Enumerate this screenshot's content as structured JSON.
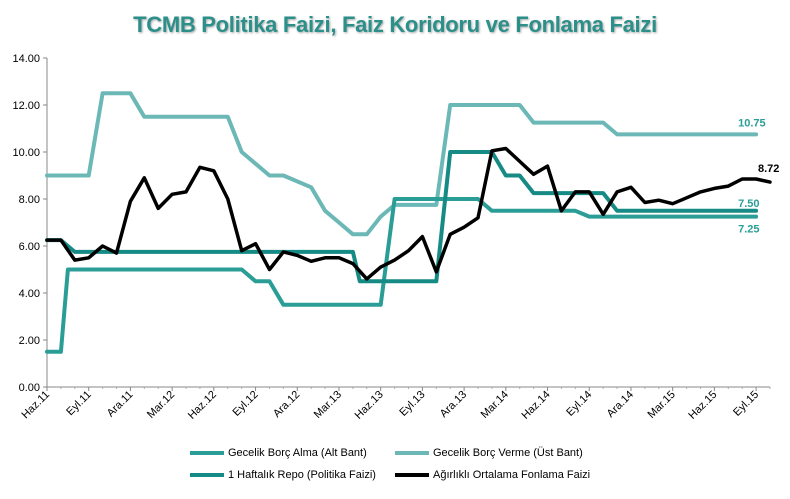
{
  "chart_data": {
    "type": "line",
    "title": "TCMB Politika Faizi, Faiz Koridoru ve Fonlama Faizi",
    "xlabel": "",
    "ylabel": "",
    "ylim": [
      0,
      14
    ],
    "yticks": [
      "0.00",
      "2.00",
      "4.00",
      "6.00",
      "8.00",
      "10.00",
      "12.00",
      "14.00"
    ],
    "xticks": [
      "Haz.11",
      "Eyl.11",
      "Ara.11",
      "Mar.12",
      "Haz.12",
      "Eyl.12",
      "Ara.12",
      "Mar.13",
      "Haz.13",
      "Eyl.13",
      "Ara.13",
      "Mar.14",
      "Haz.14",
      "Eyl.14",
      "Ara.14",
      "Mar.15",
      "Haz.15",
      "Eyl.15"
    ],
    "grid": false,
    "legend": "bottom",
    "series": [
      {
        "name": "Gecelik Borç Alma (Alt Bant)",
        "color": "#2b9d97",
        "values": [
          [
            0,
            1.5
          ],
          [
            1,
            1.5
          ],
          [
            1.5,
            5.0
          ],
          [
            14,
            5.0
          ],
          [
            15,
            4.5
          ],
          [
            16,
            4.5
          ],
          [
            17,
            3.5
          ],
          [
            24,
            3.5
          ],
          [
            25,
            8.0
          ],
          [
            31,
            8.0
          ],
          [
            32,
            7.5
          ],
          [
            38,
            7.5
          ],
          [
            39,
            7.25
          ],
          [
            51,
            7.25
          ]
        ],
        "end_label": "7.25"
      },
      {
        "name": "Gecelik Borç Verme (Üst Bant)",
        "color": "#6cb8b6",
        "values": [
          [
            0,
            9.0
          ],
          [
            3,
            9.0
          ],
          [
            4,
            12.5
          ],
          [
            6,
            12.5
          ],
          [
            7,
            11.5
          ],
          [
            13,
            11.5
          ],
          [
            14,
            10.0
          ],
          [
            16,
            9.0
          ],
          [
            17,
            9.0
          ],
          [
            19,
            8.5
          ],
          [
            20,
            7.5
          ],
          [
            21,
            7.0
          ],
          [
            22,
            6.5
          ],
          [
            23,
            6.5
          ],
          [
            24,
            7.25
          ],
          [
            25,
            7.75
          ],
          [
            28,
            7.75
          ],
          [
            29,
            12.0
          ],
          [
            34,
            12.0
          ],
          [
            35,
            11.25
          ],
          [
            40,
            11.25
          ],
          [
            41,
            10.75
          ],
          [
            51,
            10.75
          ]
        ],
        "end_label": "10.75"
      },
      {
        "name": "1 Haftalık Repo (Politika Faizi)",
        "color": "#168a84",
        "values": [
          [
            0,
            6.25
          ],
          [
            1,
            6.25
          ],
          [
            2,
            5.75
          ],
          [
            22,
            5.75
          ],
          [
            22.5,
            4.5
          ],
          [
            28,
            4.5
          ],
          [
            29,
            10.0
          ],
          [
            32,
            10.0
          ],
          [
            33,
            9.0
          ],
          [
            34,
            9.0
          ],
          [
            35,
            8.25
          ],
          [
            40,
            8.25
          ],
          [
            41,
            7.5
          ],
          [
            51,
            7.5
          ]
        ],
        "end_label": "7.50"
      },
      {
        "name": "Ağırlıklı Ortalama Fonlama Faizi",
        "color": "#000000",
        "values": [
          [
            0,
            6.25
          ],
          [
            1,
            6.25
          ],
          [
            2,
            5.4
          ],
          [
            3,
            5.5
          ],
          [
            4,
            6.0
          ],
          [
            5,
            5.7
          ],
          [
            6,
            7.9
          ],
          [
            7,
            8.9
          ],
          [
            8,
            7.6
          ],
          [
            9,
            8.2
          ],
          [
            10,
            8.3
          ],
          [
            11,
            9.35
          ],
          [
            12,
            9.2
          ],
          [
            13,
            8.0
          ],
          [
            14,
            5.8
          ],
          [
            15,
            6.1
          ],
          [
            16,
            5.0
          ],
          [
            17,
            5.75
          ],
          [
            18,
            5.6
          ],
          [
            19,
            5.35
          ],
          [
            20,
            5.5
          ],
          [
            21,
            5.5
          ],
          [
            22,
            5.25
          ],
          [
            23,
            4.6
          ],
          [
            24,
            5.1
          ],
          [
            25,
            5.4
          ],
          [
            26,
            5.8
          ],
          [
            27,
            6.4
          ],
          [
            28,
            4.9
          ],
          [
            29,
            6.5
          ],
          [
            30,
            6.8
          ],
          [
            31,
            7.2
          ],
          [
            32,
            10.05
          ],
          [
            33,
            10.15
          ],
          [
            34,
            9.6
          ],
          [
            35,
            9.05
          ],
          [
            36,
            9.4
          ],
          [
            37,
            7.5
          ],
          [
            38,
            8.3
          ],
          [
            39,
            8.3
          ],
          [
            40,
            7.35
          ],
          [
            41,
            8.3
          ],
          [
            42,
            8.5
          ],
          [
            43,
            7.85
          ],
          [
            44,
            7.95
          ],
          [
            45,
            7.8
          ],
          [
            46,
            8.05
          ],
          [
            47,
            8.3
          ],
          [
            48,
            8.45
          ],
          [
            49,
            8.55
          ],
          [
            50,
            8.85
          ],
          [
            51,
            8.85
          ],
          [
            52,
            8.72
          ]
        ],
        "end_label": "8.72"
      }
    ]
  }
}
